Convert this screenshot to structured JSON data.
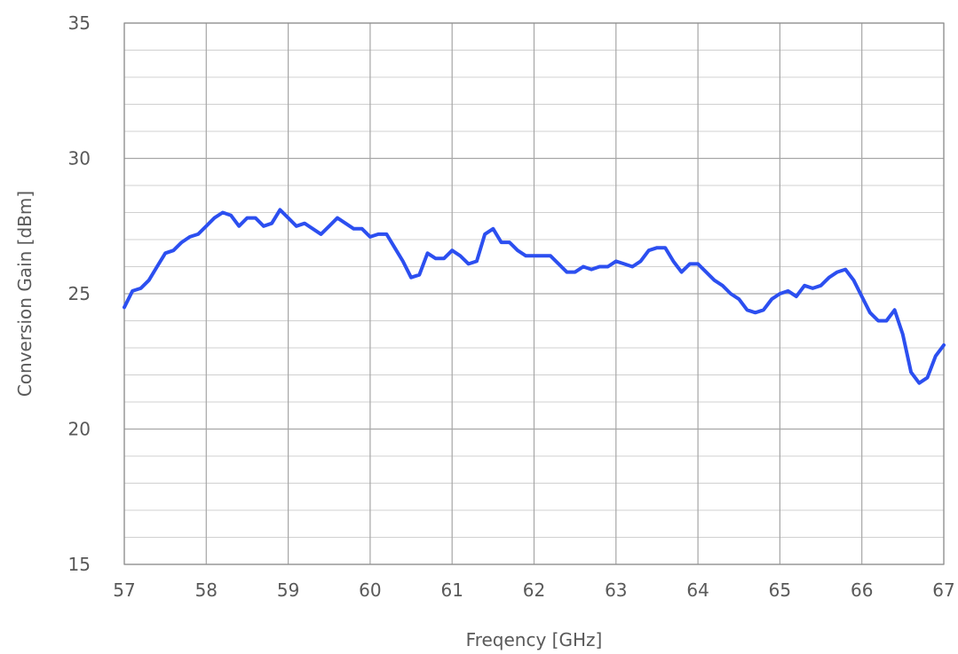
{
  "chart_data": {
    "type": "line",
    "title": "",
    "xlabel": "Freqency [GHz]",
    "ylabel": "Conversion Gain [dBm]",
    "xlim": [
      57,
      67
    ],
    "ylim": [
      15,
      35
    ],
    "x_ticks": [
      "57",
      "58",
      "59",
      "60",
      "61",
      "62",
      "63",
      "64",
      "65",
      "66",
      "67"
    ],
    "y_ticks": [
      "15",
      "20",
      "25",
      "30",
      "35"
    ],
    "grid": true,
    "line_color": "#2c4ff0",
    "series": [
      {
        "x": [
          57.0,
          57.1,
          57.2,
          57.3,
          57.4,
          57.5,
          57.6,
          57.7,
          57.8,
          57.9,
          58.0,
          58.1,
          58.2,
          58.3,
          58.4,
          58.5,
          58.6,
          58.7,
          58.8,
          58.9,
          59.0,
          59.1,
          59.2,
          59.3,
          59.4,
          59.5,
          59.6,
          59.7,
          59.8,
          59.9,
          60.0,
          60.1,
          60.2,
          60.3,
          60.4,
          60.5,
          60.6,
          60.7,
          60.8,
          60.9,
          61.0,
          61.1,
          61.2,
          61.3,
          61.4,
          61.5,
          61.6,
          61.7,
          61.8,
          61.9,
          62.0,
          62.1,
          62.2,
          62.3,
          62.4,
          62.5,
          62.6,
          62.7,
          62.8,
          62.9,
          63.0,
          63.1,
          63.2,
          63.3,
          63.4,
          63.5,
          63.6,
          63.7,
          63.8,
          63.9,
          64.0,
          64.1,
          64.2,
          64.3,
          64.4,
          64.5,
          64.6,
          64.7,
          64.8,
          64.9,
          65.0,
          65.1,
          65.2,
          65.3,
          65.4,
          65.5,
          65.6,
          65.7,
          65.8,
          65.9,
          66.0,
          66.1,
          66.2,
          66.3,
          66.4,
          66.5,
          66.6,
          66.7,
          66.8,
          66.9,
          67.0
        ],
        "values": [
          24.5,
          25.1,
          25.2,
          25.5,
          26.0,
          26.5,
          26.6,
          26.9,
          27.1,
          27.2,
          27.5,
          27.8,
          28.0,
          27.9,
          27.5,
          27.8,
          27.8,
          27.5,
          27.6,
          28.1,
          27.8,
          27.5,
          27.6,
          27.4,
          27.2,
          27.5,
          27.8,
          27.6,
          27.4,
          27.4,
          27.1,
          27.2,
          27.2,
          26.7,
          26.2,
          25.6,
          25.7,
          26.5,
          26.3,
          26.3,
          26.6,
          26.4,
          26.1,
          26.2,
          27.2,
          27.4,
          26.9,
          26.9,
          26.6,
          26.4,
          26.4,
          26.4,
          26.4,
          26.1,
          25.8,
          25.8,
          26.0,
          25.9,
          26.0,
          26.0,
          26.2,
          26.1,
          26.0,
          26.2,
          26.6,
          26.7,
          26.7,
          26.2,
          25.8,
          26.1,
          26.1,
          25.8,
          25.5,
          25.3,
          25.0,
          24.8,
          24.4,
          24.3,
          24.4,
          24.8,
          25.0,
          25.1,
          24.9,
          25.3,
          25.2,
          25.3,
          25.6,
          25.8,
          25.9,
          25.5,
          24.9,
          24.3,
          24.0,
          24.0,
          24.4,
          23.5,
          22.1,
          21.7,
          21.9,
          22.7,
          23.1
        ]
      }
    ]
  }
}
